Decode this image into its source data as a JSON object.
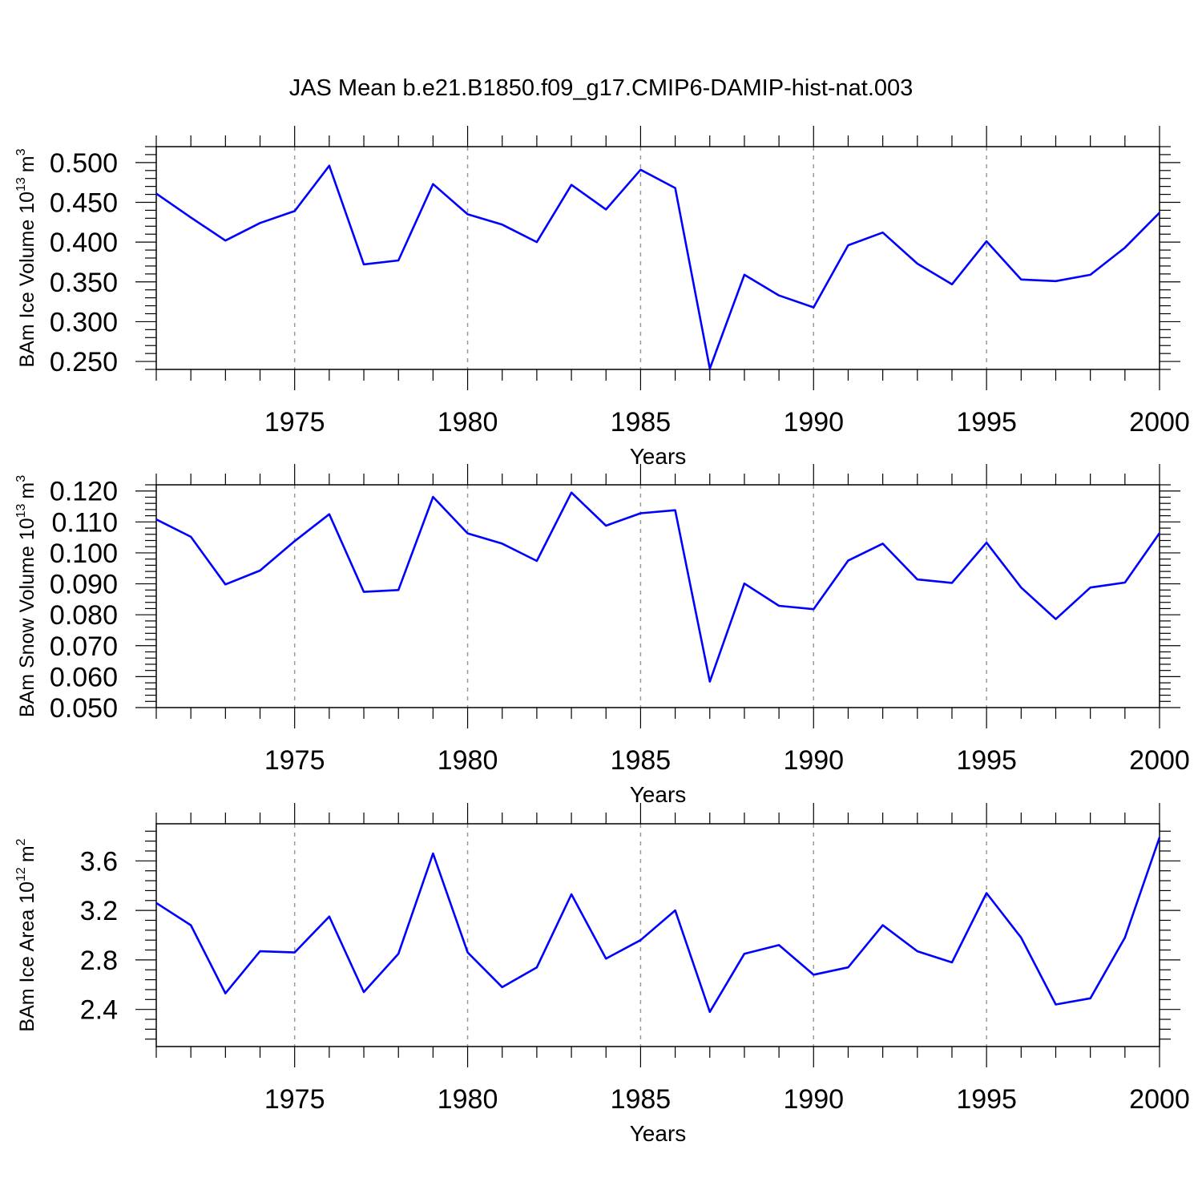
{
  "figure": {
    "title": "JAS Mean b.e21.B1850.f09_g17.CMIP6-DAMIP-hist-nat.003"
  },
  "colors": {
    "series": "#0000ff",
    "axis": "#000000",
    "grid": "#999999"
  },
  "chart_data": [
    {
      "type": "line",
      "ylabel": {
        "main": "BAm Ice Volume 10",
        "exponent": "13",
        "unit": "m",
        "unit_exponent": "3"
      },
      "xlabel": "Years",
      "xlim": [
        1971,
        2000
      ],
      "ylim": [
        0.24,
        0.52
      ],
      "yticks": [
        0.25,
        0.3,
        0.35,
        0.4,
        0.45,
        0.5
      ],
      "ytick_labels": [
        "0.250",
        "0.300",
        "0.350",
        "0.400",
        "0.450",
        "0.500"
      ],
      "xticks": [
        1975,
        1980,
        1985,
        1990,
        1995,
        2000
      ],
      "xtick_labels": [
        "1975",
        "1980",
        "1985",
        "1990",
        "1995",
        "2000"
      ],
      "grid": "vertical dashed at major x ticks",
      "x": [
        1971,
        1972,
        1973,
        1974,
        1975,
        1976,
        1977,
        1978,
        1979,
        1980,
        1981,
        1982,
        1983,
        1984,
        1985,
        1986,
        1987,
        1988,
        1989,
        1990,
        1991,
        1992,
        1993,
        1994,
        1995,
        1996,
        1997,
        1998,
        1999,
        2000
      ],
      "values": [
        0.461,
        0.431,
        0.402,
        0.424,
        0.439,
        0.496,
        0.372,
        0.377,
        0.473,
        0.435,
        0.422,
        0.4,
        0.472,
        0.441,
        0.491,
        0.468,
        0.241,
        0.359,
        0.333,
        0.318,
        0.396,
        0.412,
        0.373,
        0.347,
        0.401,
        0.353,
        0.351,
        0.359,
        0.393,
        0.437
      ]
    },
    {
      "type": "line",
      "ylabel": {
        "main": "BAm Snow Volume 10",
        "exponent": "13",
        "unit": "m",
        "unit_exponent": "3"
      },
      "xlabel": "Years",
      "xlim": [
        1971,
        2000
      ],
      "ylim": [
        0.05,
        0.122
      ],
      "yticks": [
        0.05,
        0.06,
        0.07,
        0.08,
        0.09,
        0.1,
        0.11,
        0.12
      ],
      "ytick_labels": [
        "0.050",
        "0.060",
        "0.070",
        "0.080",
        "0.090",
        "0.100",
        "0.110",
        "0.120"
      ],
      "xticks": [
        1975,
        1980,
        1985,
        1990,
        1995,
        2000
      ],
      "xtick_labels": [
        "1975",
        "1980",
        "1985",
        "1990",
        "1995",
        "2000"
      ],
      "grid": "vertical dashed at major x ticks",
      "x": [
        1971,
        1972,
        1973,
        1974,
        1975,
        1976,
        1977,
        1978,
        1979,
        1980,
        1981,
        1982,
        1983,
        1984,
        1985,
        1986,
        1987,
        1988,
        1989,
        1990,
        1991,
        1992,
        1993,
        1994,
        1995,
        1996,
        1997,
        1998,
        1999,
        2000
      ],
      "values": [
        0.1108,
        0.1052,
        0.0898,
        0.0943,
        0.1038,
        0.1125,
        0.0874,
        0.088,
        0.1181,
        0.1063,
        0.103,
        0.0974,
        0.1195,
        0.1088,
        0.1128,
        0.1138,
        0.0584,
        0.0901,
        0.0829,
        0.0818,
        0.0975,
        0.103,
        0.0914,
        0.0903,
        0.1033,
        0.0888,
        0.0786,
        0.0888,
        0.0904,
        0.1064
      ]
    },
    {
      "type": "line",
      "ylabel": {
        "main": "BAm Ice Area 10",
        "exponent": "12",
        "unit": "m",
        "unit_exponent": "2"
      },
      "xlabel": "Years",
      "xlim": [
        1971,
        2000
      ],
      "ylim": [
        2.1,
        3.9
      ],
      "yticks": [
        2.4,
        2.8,
        3.2,
        3.6
      ],
      "ytick_labels": [
        "2.4",
        "2.8",
        "3.2",
        "3.6"
      ],
      "xticks": [
        1975,
        1980,
        1985,
        1990,
        1995,
        2000
      ],
      "xtick_labels": [
        "1975",
        "1980",
        "1985",
        "1990",
        "1995",
        "2000"
      ],
      "grid": "vertical dashed at major x ticks",
      "x": [
        1971,
        1972,
        1973,
        1974,
        1975,
        1976,
        1977,
        1978,
        1979,
        1980,
        1981,
        1982,
        1983,
        1984,
        1985,
        1986,
        1987,
        1988,
        1989,
        1990,
        1991,
        1992,
        1993,
        1994,
        1995,
        1996,
        1997,
        1998,
        1999,
        2000
      ],
      "values": [
        3.26,
        3.08,
        2.53,
        2.87,
        2.86,
        3.15,
        2.54,
        2.85,
        3.66,
        2.86,
        2.58,
        2.74,
        3.33,
        2.81,
        2.96,
        3.2,
        2.38,
        2.85,
        2.92,
        2.68,
        2.74,
        3.08,
        2.87,
        2.78,
        3.34,
        2.98,
        2.44,
        2.49,
        2.98,
        3.79
      ]
    }
  ]
}
